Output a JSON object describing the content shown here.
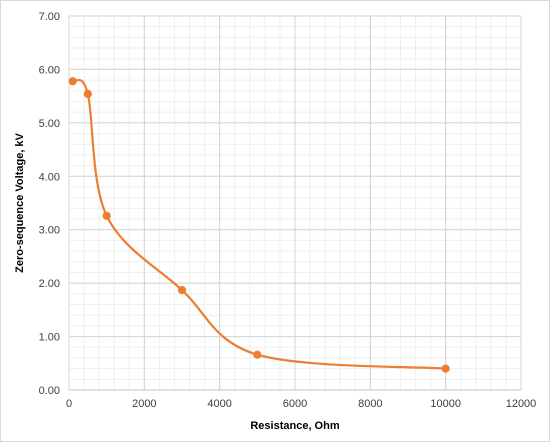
{
  "chart_data": {
    "type": "line",
    "smooth": true,
    "title": "",
    "xlabel": "Resistance, Ohm",
    "ylabel": "Zero-sequence Voltage, kV",
    "xlim": [
      0,
      12000
    ],
    "ylim": [
      0,
      7
    ],
    "x_major_step": 2000,
    "x_minor_step": 400,
    "y_major_step": 1,
    "y_minor_step": 0.2,
    "x_tick_labels": [
      "0",
      "2000",
      "4000",
      "6000",
      "8000",
      "10000",
      "12000"
    ],
    "y_tick_labels": [
      "0.00",
      "1.00",
      "2.00",
      "3.00",
      "4.00",
      "5.00",
      "6.00",
      "7.00"
    ],
    "grid": true,
    "legend": "none",
    "series": [
      {
        "color": "#ed7d31",
        "x": [
          100,
          500,
          1000,
          3000,
          5000,
          10000
        ],
        "y": [
          5.78,
          5.54,
          3.26,
          1.87,
          0.66,
          0.4
        ]
      }
    ]
  }
}
